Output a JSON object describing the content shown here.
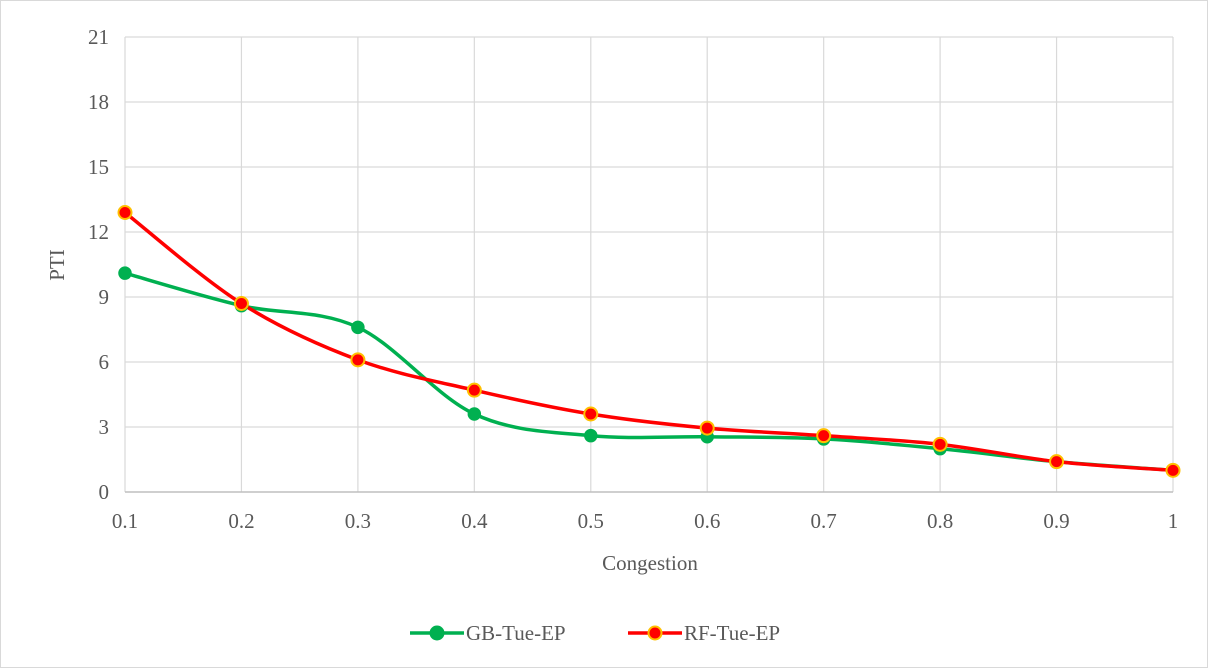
{
  "chart_data": {
    "type": "line",
    "xlabel": "Congestion",
    "ylabel": "PTI",
    "x": [
      0.1,
      0.2,
      0.3,
      0.4,
      0.5,
      0.6,
      0.7,
      0.8,
      0.9,
      1
    ],
    "x_tick_labels": [
      "0.1",
      "0.2",
      "0.3",
      "0.4",
      "0.5",
      "0.6",
      "0.7",
      "0.8",
      "0.9",
      "1"
    ],
    "y_ticks": [
      0,
      3,
      6,
      9,
      12,
      15,
      18,
      21
    ],
    "xlim": [
      0.1,
      1
    ],
    "ylim": [
      0,
      21
    ],
    "grid": true,
    "smooth": true,
    "legend_position": "bottom",
    "series": [
      {
        "name": "GB-Tue-EP",
        "color": "#00b050",
        "marker_fill": "#00b050",
        "marker_stroke": "#00b050",
        "values": [
          10.1,
          8.6,
          7.6,
          3.6,
          2.6,
          2.55,
          2.45,
          2.0,
          1.4,
          1.0
        ]
      },
      {
        "name": "RF-Tue-EP",
        "color": "#ff0000",
        "marker_fill": "#ff0000",
        "marker_stroke": "#ffc000",
        "values": [
          12.9,
          8.7,
          6.1,
          4.7,
          3.6,
          2.95,
          2.6,
          2.2,
          1.4,
          1.0
        ]
      }
    ]
  }
}
